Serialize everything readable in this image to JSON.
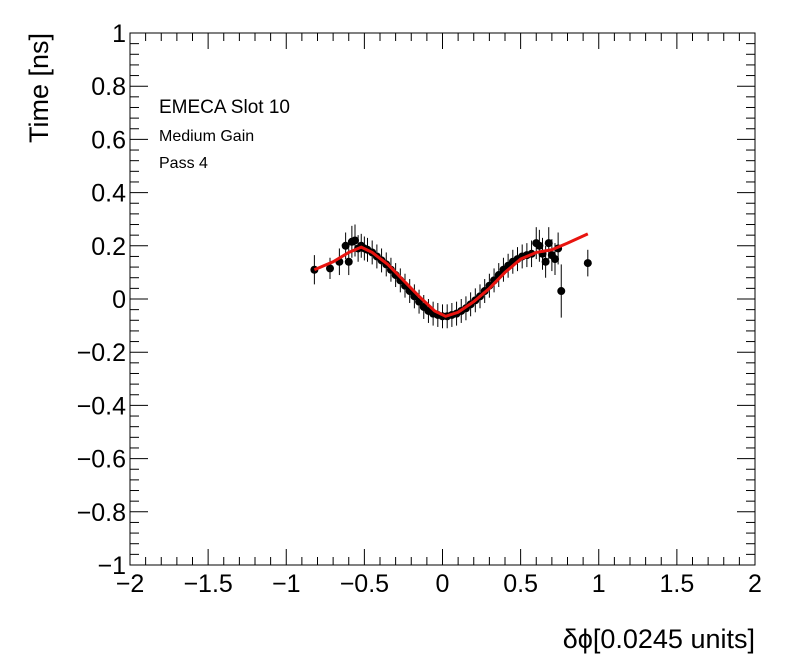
{
  "chart_data": {
    "type": "scatter",
    "title": "",
    "xlabel": "δϕ[0.0245 units]",
    "ylabel": "Time [ns]",
    "xlim": [
      -2,
      2
    ],
    "ylim": [
      -1,
      1
    ],
    "x_ticks": [
      "−2",
      "−1.5",
      "−1",
      "−0.5",
      "0",
      "0.5",
      "1",
      "1.5",
      "2"
    ],
    "y_ticks": [
      "−1",
      "−0.8",
      "−0.6",
      "−0.4",
      "−0.2",
      "0",
      "0.2",
      "0.4",
      "0.6",
      "0.8",
      "1"
    ],
    "annotations": [
      "EMECA Slot 10",
      "Medium Gain",
      "Pass 4"
    ],
    "grid": false,
    "marker_color": "#000000",
    "fit_color": "#e8140f",
    "points": [
      {
        "x": -0.82,
        "y": 0.11,
        "err": 0.055
      },
      {
        "x": -0.72,
        "y": 0.115,
        "err": 0.04
      },
      {
        "x": -0.66,
        "y": 0.14,
        "err": 0.05
      },
      {
        "x": -0.62,
        "y": 0.2,
        "err": 0.05
      },
      {
        "x": -0.6,
        "y": 0.14,
        "err": 0.05
      },
      {
        "x": -0.58,
        "y": 0.215,
        "err": 0.06
      },
      {
        "x": -0.56,
        "y": 0.22,
        "err": 0.06
      },
      {
        "x": -0.54,
        "y": 0.19,
        "err": 0.05
      },
      {
        "x": -0.52,
        "y": 0.2,
        "err": 0.045
      },
      {
        "x": -0.5,
        "y": 0.19,
        "err": 0.045
      },
      {
        "x": -0.48,
        "y": 0.185,
        "err": 0.045
      },
      {
        "x": -0.45,
        "y": 0.175,
        "err": 0.045
      },
      {
        "x": -0.42,
        "y": 0.16,
        "err": 0.045
      },
      {
        "x": -0.39,
        "y": 0.145,
        "err": 0.045
      },
      {
        "x": -0.36,
        "y": 0.13,
        "err": 0.045
      },
      {
        "x": -0.33,
        "y": 0.11,
        "err": 0.045
      },
      {
        "x": -0.3,
        "y": 0.09,
        "err": 0.045
      },
      {
        "x": -0.27,
        "y": 0.07,
        "err": 0.045
      },
      {
        "x": -0.24,
        "y": 0.05,
        "err": 0.045
      },
      {
        "x": -0.21,
        "y": 0.03,
        "err": 0.045
      },
      {
        "x": -0.18,
        "y": 0.01,
        "err": 0.045
      },
      {
        "x": -0.15,
        "y": -0.01,
        "err": 0.045
      },
      {
        "x": -0.12,
        "y": -0.03,
        "err": 0.045
      },
      {
        "x": -0.09,
        "y": -0.045,
        "err": 0.045
      },
      {
        "x": -0.06,
        "y": -0.055,
        "err": 0.045
      },
      {
        "x": -0.03,
        "y": -0.06,
        "err": 0.045
      },
      {
        "x": 0.0,
        "y": -0.065,
        "err": 0.045
      },
      {
        "x": 0.03,
        "y": -0.065,
        "err": 0.045
      },
      {
        "x": 0.06,
        "y": -0.06,
        "err": 0.045
      },
      {
        "x": 0.09,
        "y": -0.055,
        "err": 0.045
      },
      {
        "x": 0.12,
        "y": -0.045,
        "err": 0.045
      },
      {
        "x": 0.15,
        "y": -0.035,
        "err": 0.045
      },
      {
        "x": 0.18,
        "y": -0.02,
        "err": 0.045
      },
      {
        "x": 0.21,
        "y": -0.005,
        "err": 0.045
      },
      {
        "x": 0.24,
        "y": 0.01,
        "err": 0.045
      },
      {
        "x": 0.27,
        "y": 0.03,
        "err": 0.045
      },
      {
        "x": 0.3,
        "y": 0.05,
        "err": 0.045
      },
      {
        "x": 0.33,
        "y": 0.07,
        "err": 0.045
      },
      {
        "x": 0.36,
        "y": 0.09,
        "err": 0.045
      },
      {
        "x": 0.39,
        "y": 0.11,
        "err": 0.045
      },
      {
        "x": 0.42,
        "y": 0.125,
        "err": 0.045
      },
      {
        "x": 0.45,
        "y": 0.14,
        "err": 0.045
      },
      {
        "x": 0.48,
        "y": 0.15,
        "err": 0.045
      },
      {
        "x": 0.51,
        "y": 0.16,
        "err": 0.045
      },
      {
        "x": 0.54,
        "y": 0.165,
        "err": 0.045
      },
      {
        "x": 0.57,
        "y": 0.17,
        "err": 0.05
      },
      {
        "x": 0.6,
        "y": 0.21,
        "err": 0.06
      },
      {
        "x": 0.62,
        "y": 0.2,
        "err": 0.06
      },
      {
        "x": 0.64,
        "y": 0.17,
        "err": 0.06
      },
      {
        "x": 0.66,
        "y": 0.14,
        "err": 0.06
      },
      {
        "x": 0.68,
        "y": 0.21,
        "err": 0.06
      },
      {
        "x": 0.7,
        "y": 0.165,
        "err": 0.06
      },
      {
        "x": 0.72,
        "y": 0.15,
        "err": 0.06
      },
      {
        "x": 0.74,
        "y": 0.19,
        "err": 0.06
      },
      {
        "x": 0.76,
        "y": 0.03,
        "err": 0.1
      },
      {
        "x": 0.93,
        "y": 0.135,
        "err": 0.05
      }
    ],
    "fit": [
      {
        "x": -0.82,
        "y": 0.11
      },
      {
        "x": -0.7,
        "y": 0.14
      },
      {
        "x": -0.6,
        "y": 0.175
      },
      {
        "x": -0.52,
        "y": 0.195
      },
      {
        "x": -0.45,
        "y": 0.175
      },
      {
        "x": -0.35,
        "y": 0.13
      },
      {
        "x": -0.25,
        "y": 0.07
      },
      {
        "x": -0.15,
        "y": 0.01
      },
      {
        "x": -0.05,
        "y": -0.045
      },
      {
        "x": 0.02,
        "y": -0.065
      },
      {
        "x": 0.1,
        "y": -0.05
      },
      {
        "x": 0.2,
        "y": -0.01
      },
      {
        "x": 0.3,
        "y": 0.04
      },
      {
        "x": 0.4,
        "y": 0.1
      },
      {
        "x": 0.5,
        "y": 0.15
      },
      {
        "x": 0.6,
        "y": 0.175
      },
      {
        "x": 0.7,
        "y": 0.185
      },
      {
        "x": 0.8,
        "y": 0.21
      },
      {
        "x": 0.93,
        "y": 0.245
      }
    ]
  }
}
